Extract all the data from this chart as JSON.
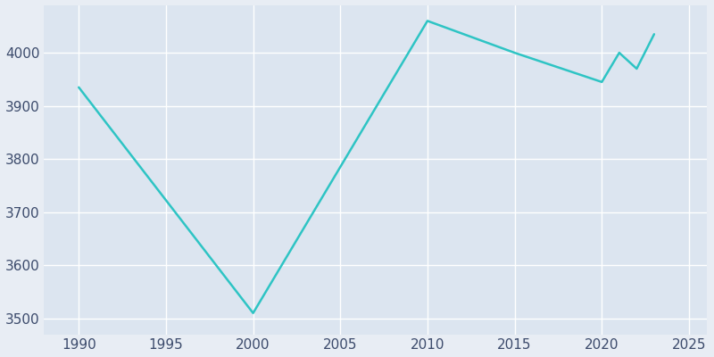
{
  "years": [
    1990,
    2000,
    2010,
    2015,
    2020,
    2021,
    2022,
    2023
  ],
  "population": [
    3935,
    3510,
    4060,
    4000,
    3945,
    4000,
    3970,
    4035
  ],
  "line_color": "#2EC4C4",
  "figure_facecolor": "#E8EDF4",
  "axes_facecolor": "#DCE5F0",
  "grid_color": "#FFFFFF",
  "tick_label_color": "#3B4A6B",
  "xlim": [
    1988,
    2026
  ],
  "ylim": [
    3470,
    4090
  ],
  "xticks": [
    1990,
    1995,
    2000,
    2005,
    2010,
    2015,
    2020,
    2025
  ],
  "yticks": [
    3500,
    3600,
    3700,
    3800,
    3900,
    4000
  ],
  "linewidth": 1.8,
  "tick_fontsize": 11
}
